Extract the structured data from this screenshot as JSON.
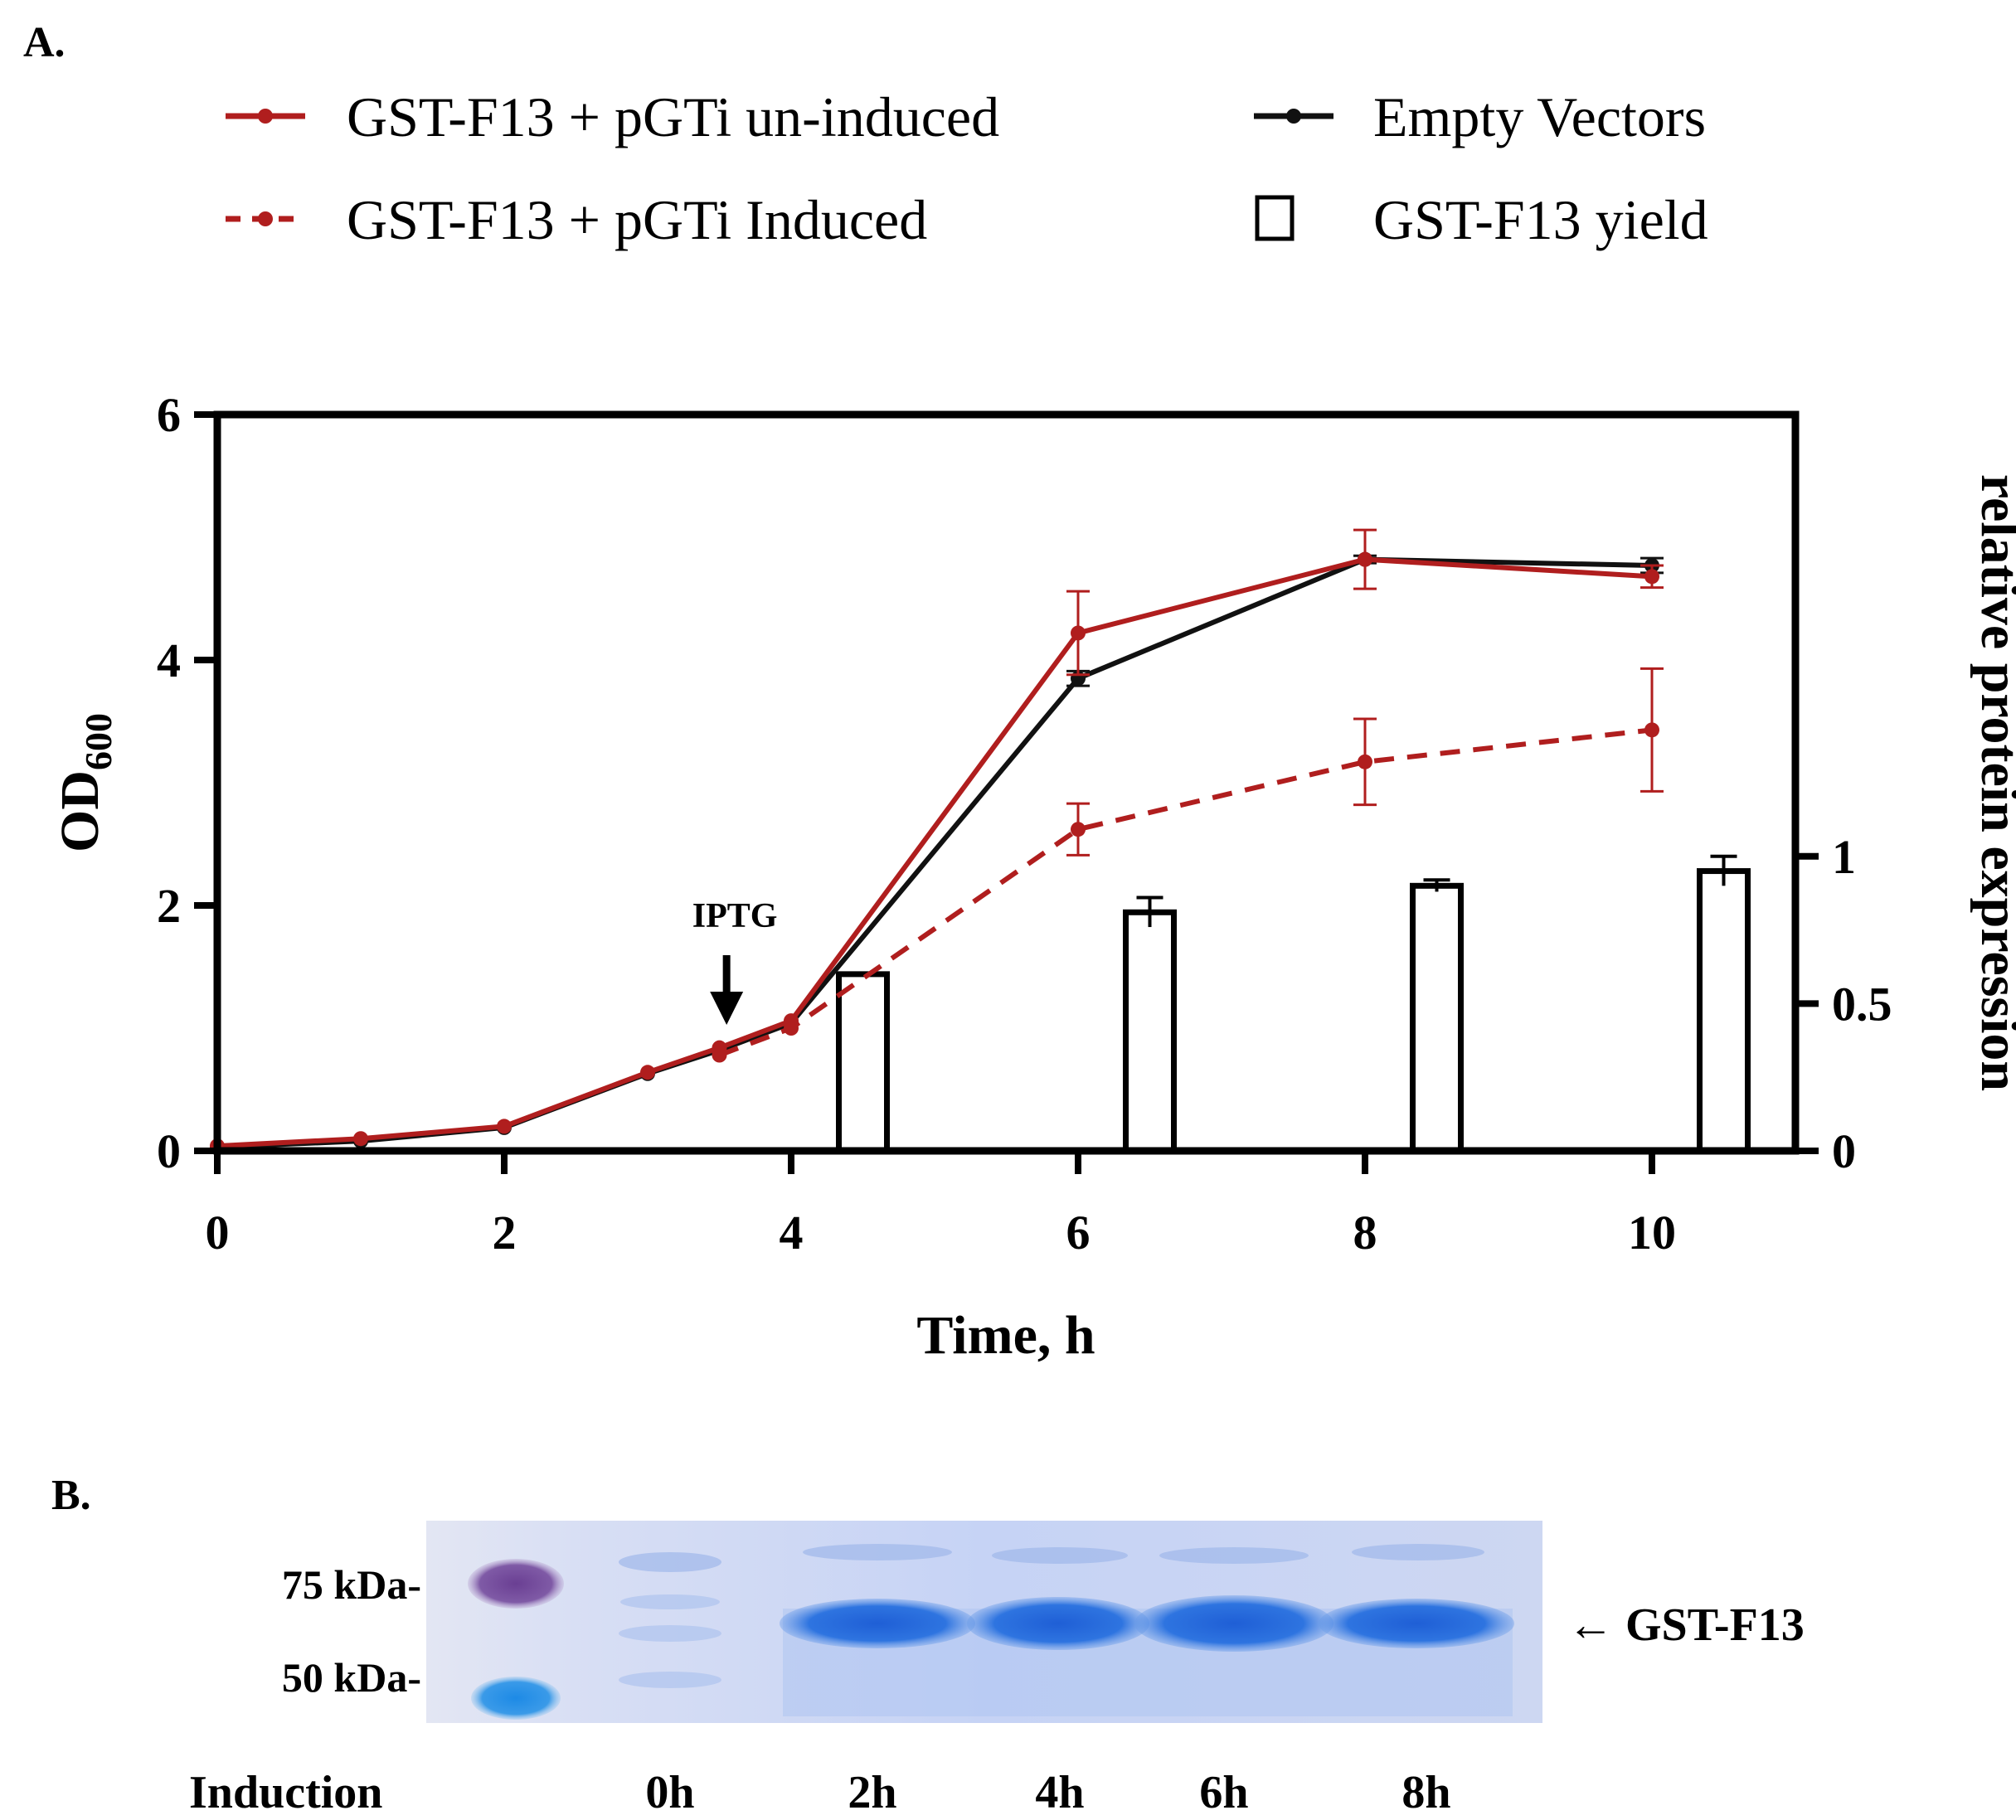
{
  "panel_a_label": "A.",
  "panel_b_label": "B.",
  "colors": {
    "uninduced": "#b01e1e",
    "induced": "#b01e1e",
    "empty": "#111111",
    "bar_fill": "#ffffff",
    "bar_edge": "#000000"
  },
  "chart_data": {
    "type": "line+bar",
    "title": "",
    "xlabel": "Time, h",
    "ylabel_main": "OD",
    "ylabel_sub": "600",
    "y2label": "relative protein expression",
    "xlim": [
      0,
      11
    ],
    "ylim": [
      0,
      6
    ],
    "y2lim": [
      0,
      2.5
    ],
    "x_ticks": [
      "0",
      "2",
      "4",
      "6",
      "8",
      "10"
    ],
    "y_ticks": [
      "0",
      "2",
      "4",
      "6"
    ],
    "y2_ticks": [
      "0",
      "0.5",
      "1"
    ],
    "annotation": "IPTG",
    "annotation_x": 3.55,
    "series": [
      {
        "name": "GST-F13 + pGTi un-induced",
        "style": "solid",
        "color": "#b01e1e",
        "x": [
          0,
          1,
          2,
          3,
          3.5,
          4,
          6,
          8,
          10
        ],
        "y": [
          0.04,
          0.1,
          0.2,
          0.64,
          0.84,
          1.06,
          4.22,
          4.82,
          4.68
        ],
        "err": [
          0,
          0,
          0,
          0,
          0,
          0,
          0.34,
          0.24,
          0.09
        ]
      },
      {
        "name": "Empty Vectors",
        "style": "solid",
        "color": "#111111",
        "x": [
          0,
          1,
          2,
          3,
          3.5,
          4,
          6,
          8,
          10
        ],
        "y": [
          0.03,
          0.08,
          0.19,
          0.63,
          0.82,
          1.04,
          3.85,
          4.82,
          4.77
        ],
        "err": [
          0,
          0,
          0,
          0,
          0,
          0,
          0.06,
          0.03,
          0.06
        ]
      },
      {
        "name": "GST-F13 + pGTi Induced",
        "style": "dashed",
        "color": "#b01e1e",
        "x": [
          3.5,
          4,
          6,
          8,
          10
        ],
        "y": [
          0.78,
          1.0,
          2.62,
          3.17,
          3.43
        ],
        "err": [
          0,
          0,
          0.21,
          0.35,
          0.5
        ]
      }
    ],
    "bars": {
      "name": "GST-F13 yield",
      "x": [
        4.5,
        6.5,
        8.5,
        10.5
      ],
      "values": [
        0.6,
        0.81,
        0.9,
        0.95
      ],
      "err": [
        0,
        0.05,
        0.02,
        0.05
      ]
    }
  },
  "legend": [
    {
      "label": "GST-F13 + pGTi un-induced",
      "kind": "solid-line",
      "color": "#b01e1e"
    },
    {
      "label": "GST-F13 + pGTi Induced",
      "kind": "dashed-line",
      "color": "#b01e1e"
    },
    {
      "label": "Empty Vectors",
      "kind": "solid-line",
      "color": "#111111"
    },
    {
      "label": "GST-F13 yield",
      "kind": "box",
      "color": "#000000"
    }
  ],
  "gel": {
    "marker_75": "75 kDa-",
    "marker_50": "50 kDa-",
    "band_label": "← GST-F13",
    "row_label": "Induction",
    "lanes": [
      "0h",
      "2h",
      "4h",
      "6h",
      "8h"
    ]
  }
}
